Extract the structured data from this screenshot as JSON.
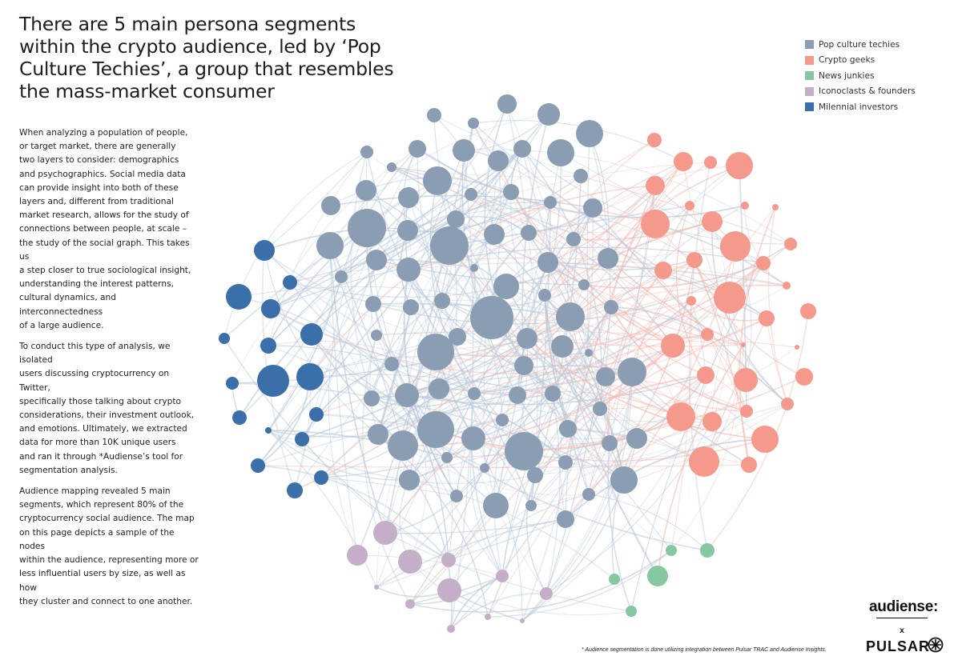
{
  "title": "There are 5 main persona segments within the crypto audience, led by ‘Pop Culture Techies’, a group that resembles the mass-market consumer",
  "body": {
    "paragraphs": [
      "When analyzing a population of people,\nor target market, there are generally\ntwo layers to consider: demographics\nand psychographics. Social media data\ncan provide insight into both of these\nlayers and, different from traditional\nmarket research, allows for the study of\nconnections between people, at scale –\nthe study of the social graph. This takes us\na step closer to true sociological insight,\nunderstanding the interest patterns,\ncultural dynamics, and interconnectedness\nof a large audience.",
      "To conduct this type of analysis, we isolated\nusers discussing cryptocurrency on Twitter,\nspecifically those talking about crypto\nconsiderations, their investment outlook,\nand emotions. Ultimately, we extracted\ndata for more than 10K unique users\nand ran it through *Audiense’s tool for\nsegmentation analysis.",
      "Audience mapping revealed 5 main\nsegments, which represent 80% of the\ncryptocurrency social audience. The map\non this page depicts a sample of the nodes\nwithin the audience, representing more or\nless influential users by size, as well as how\nthey cluster and connect to one another."
    ]
  },
  "legend": [
    {
      "label": "Pop culture techies",
      "color": "#8a9db3"
    },
    {
      "label": "Crypto geeks",
      "color": "#f4998b"
    },
    {
      "label": "News junkies",
      "color": "#86c7a2"
    },
    {
      "label": "Iconoclasts & founders",
      "color": "#c5aec8"
    },
    {
      "label": "Milennial investors",
      "color": "#3a6fa9"
    }
  ],
  "edge_colors": {
    "default": "#b7c7d9",
    "crypto": "#f3b7ae"
  },
  "footnote": "* Audience segmentation is done utilizing integration between Pulsar TRAC and Audiense Insights.",
  "logos": {
    "audiense": "audiense:",
    "x": "x",
    "pulsar": "PULSAR",
    "pulsar_icon": "pulsar-star-icon"
  }
}
